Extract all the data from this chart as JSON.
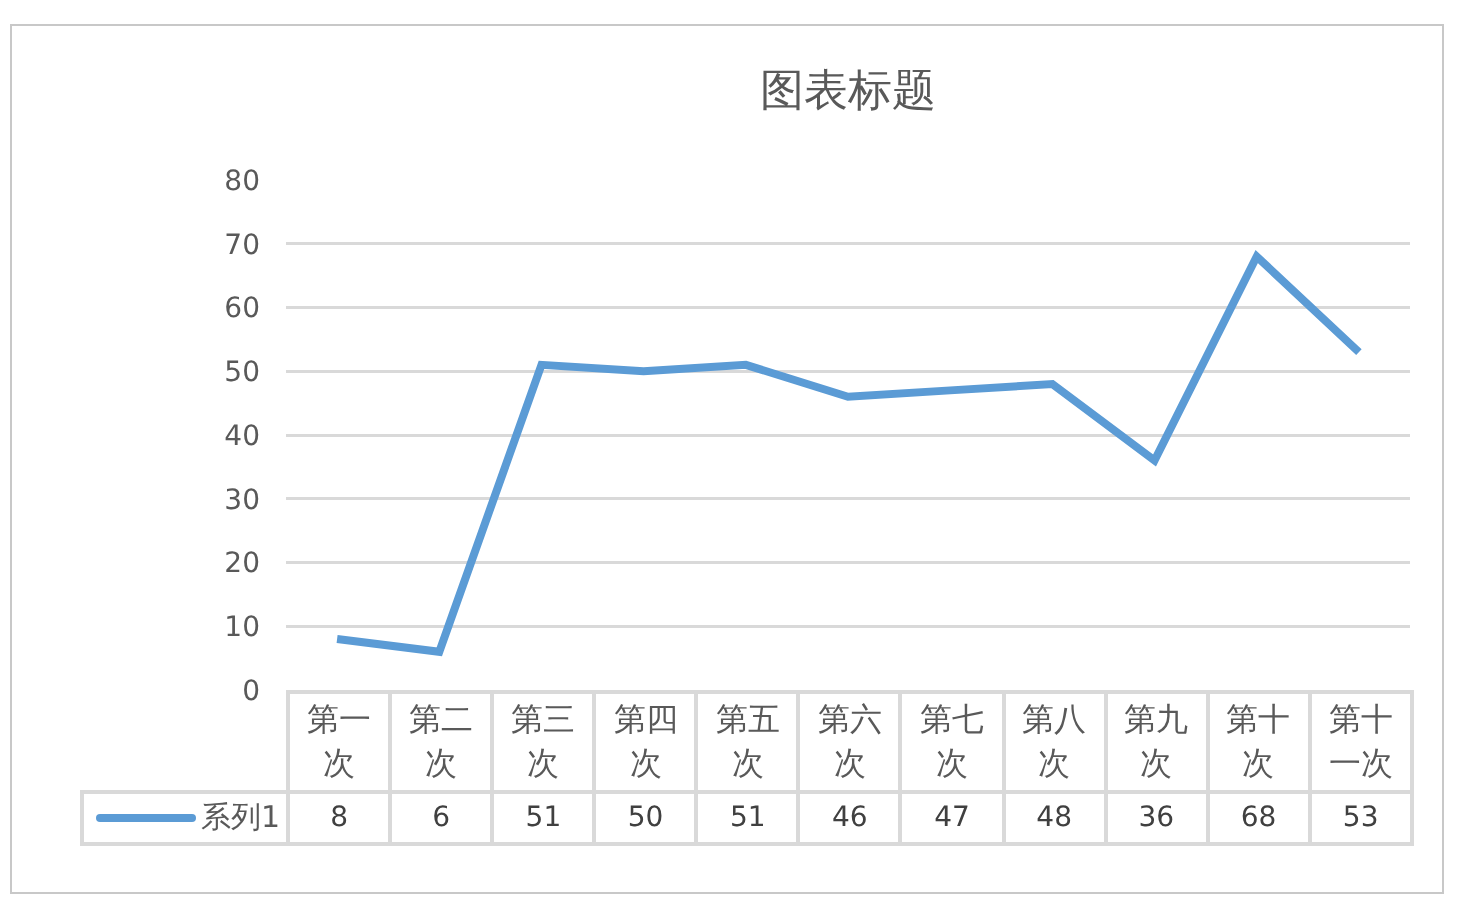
{
  "chart_data": {
    "type": "line",
    "title": "图表标题",
    "categories": [
      "第一次",
      "第二次",
      "第三次",
      "第四次",
      "第五次",
      "第六次",
      "第七次",
      "第八次",
      "第九次",
      "第十次",
      "第十一次"
    ],
    "series": [
      {
        "name": "系列1",
        "color": "#5b9bd5",
        "values": [
          8,
          6,
          51,
          50,
          51,
          46,
          47,
          48,
          36,
          68,
          53
        ]
      }
    ],
    "ylim": [
      0,
      80
    ],
    "yticks": [
      0,
      10,
      20,
      30,
      40,
      50,
      60,
      70,
      80
    ],
    "grid": "y",
    "legend": "bottom",
    "data_labels": true
  }
}
